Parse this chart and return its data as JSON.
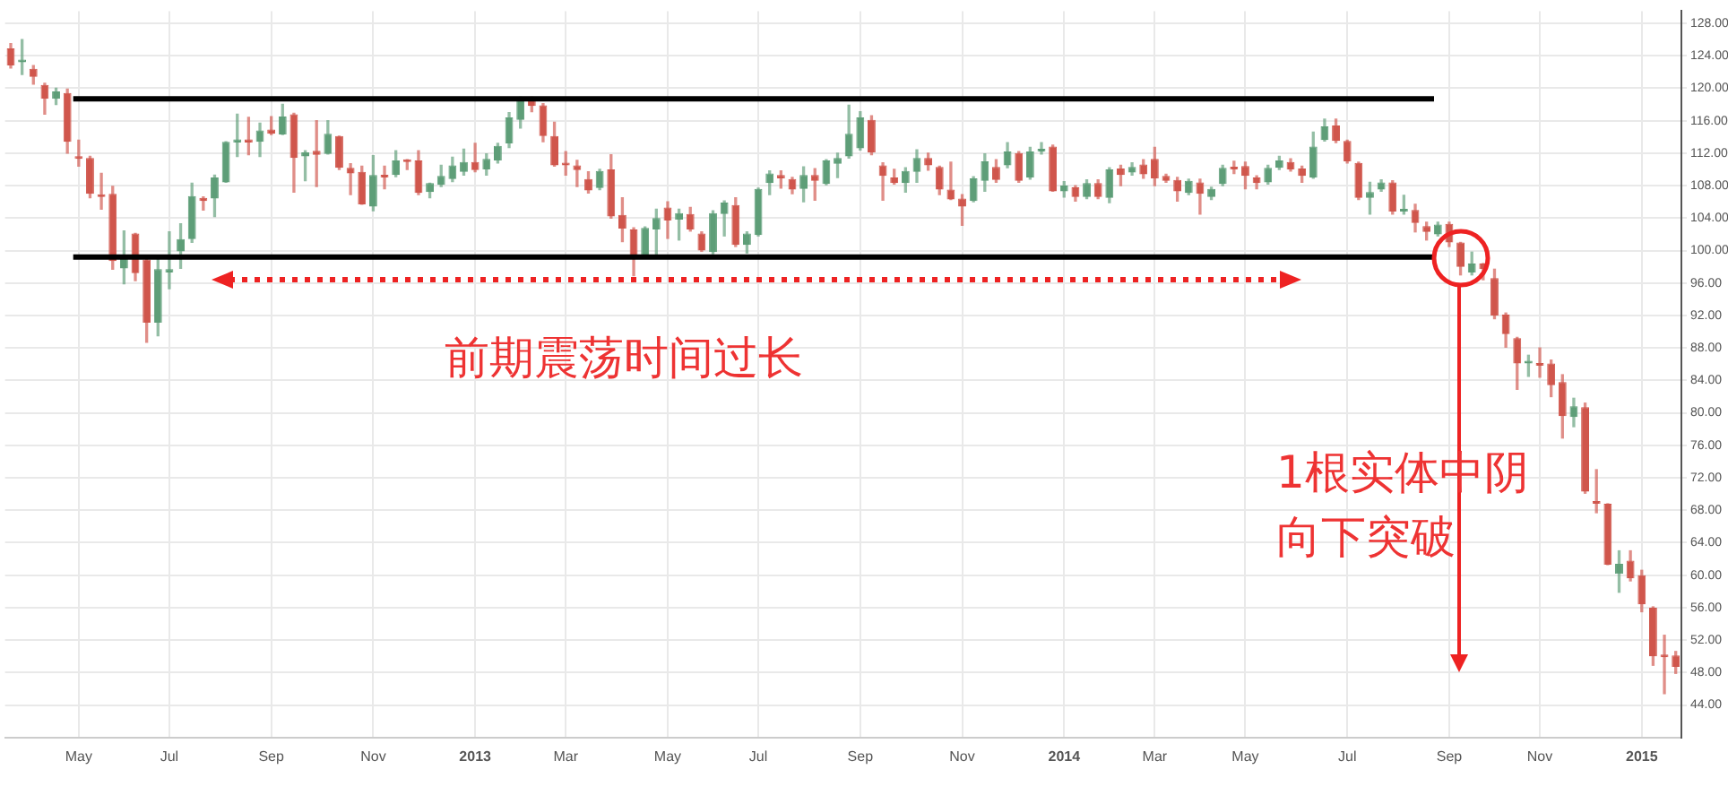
{
  "chart_data": {
    "type": "candlestick",
    "annotations": [
      "前期震荡时间过长",
      "1根实体中阴",
      "向下突破"
    ],
    "categories": [
      null,
      null,
      null,
      null,
      null,
      null,
      "May",
      null,
      null,
      null,
      null,
      null,
      null,
      null,
      "Jul",
      null,
      null,
      null,
      null,
      null,
      null,
      null,
      null,
      "Sep",
      null,
      null,
      null,
      null,
      null,
      null,
      null,
      null,
      "Nov",
      null,
      null,
      null,
      null,
      null,
      null,
      null,
      null,
      "2013",
      null,
      null,
      null,
      null,
      null,
      null,
      null,
      "Mar",
      null,
      null,
      null,
      null,
      null,
      null,
      null,
      null,
      "May",
      null,
      null,
      null,
      null,
      null,
      null,
      null,
      "Jul",
      null,
      null,
      null,
      null,
      null,
      null,
      null,
      null,
      "Sep",
      null,
      null,
      null,
      null,
      null,
      null,
      null,
      null,
      "Nov",
      null,
      null,
      null,
      null,
      null,
      null,
      null,
      null,
      "2014",
      null,
      null,
      null,
      null,
      null,
      null,
      null,
      "Mar",
      null,
      null,
      null,
      null,
      null,
      null,
      null,
      "May",
      null,
      null,
      null,
      null,
      null,
      null,
      null,
      null,
      "Jul",
      null,
      null,
      null,
      null,
      null,
      null,
      null,
      null,
      "Sep",
      null,
      null,
      null,
      null,
      null,
      null,
      null,
      "Nov",
      null,
      null,
      null,
      null,
      null,
      null,
      null,
      null,
      "2015",
      null,
      null,
      null
    ],
    "ohlc": [
      [
        124.9,
        125.5,
        122.5,
        122.8
      ],
      [
        123.2,
        126.0,
        121.7,
        123.4
      ],
      [
        122.4,
        122.8,
        120.5,
        121.4
      ],
      [
        120.4,
        120.6,
        116.8,
        118.7
      ],
      [
        118.7,
        120.0,
        118.0,
        119.6
      ],
      [
        119.4,
        119.9,
        112.0,
        113.4
      ],
      [
        111.5,
        113.6,
        110.4,
        111.3
      ],
      [
        111.4,
        111.6,
        106.5,
        107.0
      ],
      [
        106.9,
        109.5,
        105.1,
        106.6
      ],
      [
        107.0,
        107.9,
        97.7,
        98.7
      ],
      [
        97.8,
        102.4,
        95.9,
        99.1
      ],
      [
        102.1,
        102.1,
        96.3,
        97.2
      ],
      [
        98.9,
        99.3,
        88.7,
        91.1
      ],
      [
        91.1,
        99.1,
        89.5,
        97.7
      ],
      [
        97.3,
        102.3,
        95.3,
        97.7
      ],
      [
        99.9,
        103.3,
        97.8,
        101.4
      ],
      [
        101.4,
        108.3,
        101.0,
        106.7
      ],
      [
        106.5,
        106.6,
        105.0,
        106.1
      ],
      [
        106.4,
        109.3,
        104.2,
        109.0
      ],
      [
        108.4,
        113.4,
        108.4,
        113.4
      ],
      [
        113.3,
        116.8,
        111.6,
        113.7
      ],
      [
        113.7,
        116.4,
        111.8,
        113.3
      ],
      [
        113.4,
        115.7,
        111.6,
        114.8
      ],
      [
        114.9,
        116.5,
        114.3,
        114.4
      ],
      [
        114.3,
        118.0,
        114.3,
        116.5
      ],
      [
        116.8,
        116.9,
        107.2,
        111.4
      ],
      [
        111.6,
        112.3,
        108.6,
        112.1
      ],
      [
        112.3,
        116.0,
        107.9,
        111.8
      ],
      [
        111.9,
        116.0,
        111.9,
        114.4
      ],
      [
        114.1,
        114.1,
        110.0,
        110.2
      ],
      [
        110.2,
        110.7,
        106.9,
        109.5
      ],
      [
        109.7,
        110.4,
        105.7,
        105.7
      ],
      [
        105.4,
        111.7,
        104.9,
        109.3
      ],
      [
        109.1,
        110.4,
        107.6,
        109.0
      ],
      [
        109.3,
        112.3,
        109.1,
        111.1
      ],
      [
        111.2,
        111.2,
        110.0,
        110.9
      ],
      [
        111.1,
        112.3,
        106.9,
        107.1
      ],
      [
        107.2,
        108.3,
        106.5,
        108.3
      ],
      [
        108.1,
        110.5,
        107.9,
        109.2
      ],
      [
        108.8,
        111.5,
        108.5,
        110.5
      ],
      [
        109.7,
        112.5,
        109.3,
        110.9
      ],
      [
        110.9,
        113.2,
        109.7,
        109.9
      ],
      [
        110.0,
        111.9,
        109.3,
        111.3
      ],
      [
        111.1,
        113.2,
        110.8,
        112.9
      ],
      [
        113.2,
        117.0,
        112.7,
        116.4
      ],
      [
        116.1,
        118.9,
        115.1,
        118.8
      ],
      [
        118.8,
        118.9,
        117.1,
        117.8
      ],
      [
        117.9,
        118.1,
        113.4,
        114.1
      ],
      [
        114.1,
        115.8,
        110.4,
        110.5
      ],
      [
        110.6,
        112.2,
        109.3,
        110.5
      ],
      [
        110.5,
        111.1,
        107.9,
        109.9
      ],
      [
        108.8,
        109.7,
        107.1,
        107.4
      ],
      [
        107.7,
        110.0,
        107.5,
        109.8
      ],
      [
        110.0,
        111.8,
        104.0,
        104.2
      ],
      [
        104.4,
        106.5,
        101.1,
        102.7
      ],
      [
        102.6,
        102.8,
        96.9,
        99.4
      ],
      [
        99.3,
        102.9,
        99.1,
        102.8
      ],
      [
        102.6,
        105.1,
        99.4,
        104.0
      ],
      [
        105.3,
        106.0,
        101.5,
        103.7
      ],
      [
        103.8,
        105.1,
        101.3,
        104.6
      ],
      [
        104.5,
        105.3,
        102.4,
        102.6
      ],
      [
        102.1,
        102.3,
        99.9,
        100.0
      ],
      [
        99.8,
        104.9,
        99.6,
        104.6
      ],
      [
        104.5,
        106.1,
        101.8,
        105.9
      ],
      [
        105.6,
        106.5,
        100.5,
        100.7
      ],
      [
        100.7,
        102.3,
        99.7,
        102.1
      ],
      [
        101.9,
        107.7,
        101.8,
        107.6
      ],
      [
        108.3,
        109.8,
        106.9,
        109.5
      ],
      [
        109.3,
        109.8,
        107.7,
        108.9
      ],
      [
        108.8,
        109.0,
        107.0,
        107.5
      ],
      [
        107.6,
        110.3,
        106.0,
        109.3
      ],
      [
        109.3,
        110.1,
        106.2,
        108.6
      ],
      [
        108.2,
        111.2,
        108.1,
        111.1
      ],
      [
        110.7,
        112.0,
        109.0,
        111.4
      ],
      [
        111.6,
        117.9,
        111.4,
        114.4
      ],
      [
        112.6,
        117.1,
        112.4,
        116.4
      ],
      [
        116.1,
        116.6,
        111.8,
        112.1
      ],
      [
        110.5,
        110.8,
        106.2,
        109.2
      ],
      [
        109.0,
        110.0,
        108.2,
        108.3
      ],
      [
        108.3,
        110.2,
        107.2,
        109.8
      ],
      [
        109.7,
        112.4,
        108.4,
        111.4
      ],
      [
        111.4,
        112.0,
        109.9,
        110.5
      ],
      [
        110.3,
        110.4,
        106.9,
        107.5
      ],
      [
        107.5,
        110.9,
        106.3,
        106.3
      ],
      [
        106.4,
        106.9,
        103.1,
        105.4
      ],
      [
        106.1,
        109.1,
        106.0,
        108.9
      ],
      [
        108.6,
        111.9,
        107.3,
        111.0
      ],
      [
        110.3,
        111.2,
        108.4,
        108.7
      ],
      [
        110.5,
        113.3,
        110.2,
        112.2
      ],
      [
        112.0,
        112.2,
        108.4,
        108.6
      ],
      [
        109.0,
        112.7,
        108.8,
        112.2
      ],
      [
        112.2,
        113.3,
        111.9,
        112.5
      ],
      [
        112.8,
        113.0,
        107.3,
        107.3
      ],
      [
        107.3,
        108.5,
        106.6,
        108.0
      ],
      [
        107.8,
        108.0,
        106.1,
        106.6
      ],
      [
        106.6,
        108.7,
        106.4,
        108.3
      ],
      [
        108.3,
        108.7,
        106.4,
        106.6
      ],
      [
        106.5,
        110.2,
        105.9,
        110.0
      ],
      [
        110.1,
        110.5,
        108.0,
        109.3
      ],
      [
        109.6,
        110.8,
        109.3,
        110.3
      ],
      [
        110.6,
        111.2,
        108.9,
        109.4
      ],
      [
        111.3,
        112.7,
        108.0,
        108.9
      ],
      [
        109.2,
        109.4,
        108.4,
        108.6
      ],
      [
        108.7,
        109.0,
        106.1,
        107.3
      ],
      [
        107.1,
        108.8,
        106.9,
        108.6
      ],
      [
        108.4,
        108.8,
        104.5,
        107.0
      ],
      [
        106.6,
        107.8,
        106.3,
        107.6
      ],
      [
        108.2,
        110.5,
        108.0,
        110.2
      ],
      [
        110.1,
        111.0,
        109.5,
        110.0
      ],
      [
        110.4,
        110.9,
        107.6,
        109.2
      ],
      [
        109.0,
        109.2,
        107.6,
        108.3
      ],
      [
        108.4,
        110.5,
        108.2,
        110.2
      ],
      [
        110.2,
        111.6,
        110.0,
        111.1
      ],
      [
        110.9,
        111.3,
        109.8,
        110.0
      ],
      [
        110.1,
        110.4,
        108.4,
        109.2
      ],
      [
        109.0,
        114.6,
        108.9,
        112.8
      ],
      [
        113.6,
        116.2,
        113.5,
        115.3
      ],
      [
        115.4,
        116.2,
        113.3,
        113.5
      ],
      [
        113.5,
        113.6,
        110.8,
        111.0
      ],
      [
        110.8,
        110.9,
        106.3,
        106.5
      ],
      [
        106.5,
        108.4,
        104.5,
        107.2
      ],
      [
        107.5,
        108.7,
        107.3,
        108.4
      ],
      [
        108.4,
        108.6,
        104.5,
        104.8
      ],
      [
        104.8,
        106.8,
        104.5,
        105.1
      ],
      [
        105.0,
        105.7,
        102.3,
        103.4
      ],
      [
        103.0,
        103.5,
        101.3,
        102.3
      ],
      [
        102.0,
        103.5,
        101.8,
        103.2
      ],
      [
        103.3,
        103.5,
        100.5,
        101.0
      ],
      [
        101.0,
        101.0,
        97.0,
        98.0
      ],
      [
        97.3,
        99.8,
        97.0,
        98.4
      ],
      [
        98.4,
        98.4,
        96.4,
        97.7
      ],
      [
        96.6,
        97.7,
        91.6,
        92.0
      ],
      [
        92.1,
        92.3,
        88.1,
        89.7
      ],
      [
        89.2,
        89.3,
        82.9,
        86.1
      ],
      [
        86.1,
        87.1,
        84.5,
        86.4
      ],
      [
        86.1,
        88.0,
        84.4,
        85.8
      ],
      [
        86.1,
        86.5,
        82.0,
        83.4
      ],
      [
        83.8,
        84.7,
        76.9,
        79.6
      ],
      [
        79.5,
        81.8,
        78.3,
        80.8
      ],
      [
        80.7,
        81.2,
        70.1,
        70.3
      ],
      [
        68.9,
        73.0,
        67.7,
        68.8
      ],
      [
        68.8,
        68.8,
        61.3,
        61.3
      ],
      [
        60.2,
        63.0,
        57.9,
        61.4
      ],
      [
        61.8,
        63.0,
        59.3,
        59.6
      ],
      [
        60.0,
        60.6,
        55.5,
        56.4
      ],
      [
        56.0,
        56.1,
        48.9,
        50.0
      ],
      [
        50.1,
        52.6,
        45.4,
        49.9
      ],
      [
        50.1,
        50.6,
        47.9,
        48.7
      ]
    ],
    "colors": [
      "#d0564c",
      "#5e9e78",
      "#d0564c",
      "#d0564c",
      "#5e9e78",
      "#d0564c",
      "#d0564c",
      "#d0564c",
      "#d0564c",
      "#d0564c",
      "#5e9e78",
      "#d0564c",
      "#d0564c",
      "#5e9e78",
      "#5e9e78",
      "#5e9e78",
      "#5e9e78",
      "#d0564c",
      "#5e9e78",
      "#5e9e78",
      "#5e9e78",
      "#d0564c",
      "#5e9e78",
      "#d0564c",
      "#5e9e78",
      "#d0564c",
      "#5e9e78",
      "#d0564c",
      "#5e9e78",
      "#d0564c",
      "#d0564c",
      "#d0564c",
      "#5e9e78",
      "#d0564c",
      "#5e9e78",
      "#d0564c",
      "#d0564c",
      "#5e9e78",
      "#5e9e78",
      "#5e9e78",
      "#5e9e78",
      "#d0564c",
      "#5e9e78",
      "#5e9e78",
      "#5e9e78",
      "#5e9e78",
      "#d0564c",
      "#d0564c",
      "#d0564c",
      "#d0564c",
      "#d0564c",
      "#d0564c",
      "#5e9e78",
      "#d0564c",
      "#d0564c",
      "#d0564c",
      "#5e9e78",
      "#5e9e78",
      "#d0564c",
      "#5e9e78",
      "#d0564c",
      "#d0564c",
      "#5e9e78",
      "#5e9e78",
      "#d0564c",
      "#5e9e78",
      "#5e9e78",
      "#5e9e78",
      "#d0564c",
      "#d0564c",
      "#5e9e78",
      "#d0564c",
      "#5e9e78",
      "#5e9e78",
      "#5e9e78",
      "#5e9e78",
      "#d0564c",
      "#d0564c",
      "#d0564c",
      "#5e9e78",
      "#5e9e78",
      "#d0564c",
      "#d0564c",
      "#d0564c",
      "#d0564c",
      "#5e9e78",
      "#5e9e78",
      "#d0564c",
      "#5e9e78",
      "#d0564c",
      "#5e9e78",
      "#5e9e78",
      "#d0564c",
      "#5e9e78",
      "#d0564c",
      "#5e9e78",
      "#d0564c",
      "#5e9e78",
      "#d0564c",
      "#5e9e78",
      "#d0564c",
      "#d0564c",
      "#d0564c",
      "#d0564c",
      "#5e9e78",
      "#d0564c",
      "#5e9e78",
      "#5e9e78",
      "#d0564c",
      "#d0564c",
      "#d0564c",
      "#5e9e78",
      "#5e9e78",
      "#d0564c",
      "#d0564c",
      "#5e9e78",
      "#5e9e78",
      "#d0564c",
      "#d0564c",
      "#d0564c",
      "#5e9e78",
      "#5e9e78",
      "#d0564c",
      "#5e9e78",
      "#d0564c",
      "#d0564c",
      "#5e9e78",
      "#d0564c",
      "#d0564c",
      "#5e9e78",
      "#d0564c",
      "#d0564c",
      "#d0564c",
      "#d0564c",
      "#5e9e78",
      "#d0564c",
      "#d0564c",
      "#d0564c",
      "#5e9e78",
      "#d0564c",
      "#d0564c",
      "#d0564c",
      "#5e9e78",
      "#d0564c",
      "#d0564c",
      "#d0564c",
      "#d0564c",
      "#d0564c"
    ],
    "ylim": [
      40,
      129.5
    ],
    "yticks": [
      {
        "value": 44,
        "label": "44.00"
      },
      {
        "value": 48,
        "label": "48.00"
      },
      {
        "value": 52,
        "label": "52.00"
      },
      {
        "value": 56,
        "label": "56.00"
      },
      {
        "value": 60,
        "label": "60.00"
      },
      {
        "value": 64,
        "label": "64.00"
      },
      {
        "value": 68,
        "label": "68.00"
      },
      {
        "value": 72,
        "label": "72.00"
      },
      {
        "value": 76,
        "label": "76.00"
      },
      {
        "value": 80,
        "label": "80.00"
      },
      {
        "value": 84,
        "label": "84.00"
      },
      {
        "value": 88,
        "label": "88.00"
      },
      {
        "value": 92,
        "label": "92.00"
      },
      {
        "value": 96,
        "label": "96.00"
      },
      {
        "value": 100,
        "label": "100.00"
      },
      {
        "value": 104,
        "label": "104.00"
      },
      {
        "value": 108,
        "label": "108.00"
      },
      {
        "value": 112,
        "label": "112.00"
      },
      {
        "value": 116,
        "label": "116.00"
      },
      {
        "value": 120,
        "label": "120.00"
      },
      {
        "value": 124,
        "label": "124.00"
      },
      {
        "value": 128,
        "label": "128.00"
      }
    ],
    "ref_lines": [
      {
        "axis": "y",
        "value": 118.7,
        "color": "#000000"
      },
      {
        "axis": "y",
        "value": 99.2,
        "color": "#000000"
      }
    ],
    "grid": true,
    "legend": false
  }
}
